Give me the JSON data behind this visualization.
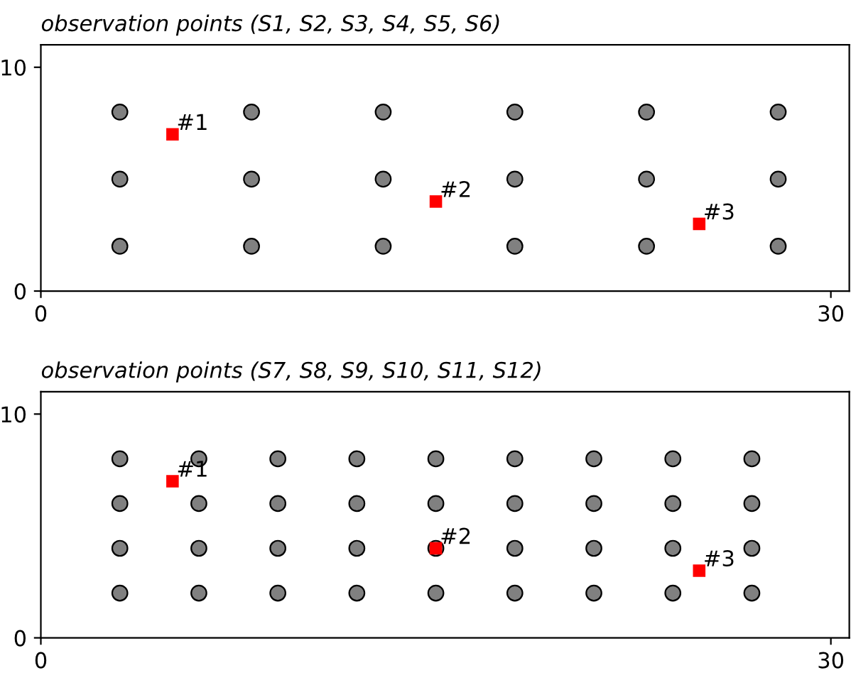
{
  "chart_data": [
    {
      "type": "scatter",
      "title": "observation points (S1, S2, S3, S4, S5, S6)",
      "xlim": [
        0,
        30.7
      ],
      "ylim": [
        0,
        11
      ],
      "xticks": [
        0,
        30
      ],
      "yticks": [
        0,
        10
      ],
      "grid": false,
      "series": [
        {
          "color": "#808080",
          "marker": "circle",
          "x": [
            3,
            8,
            13,
            18,
            23,
            28,
            3,
            8,
            13,
            18,
            23,
            28,
            3,
            8,
            13,
            18,
            23,
            28
          ],
          "values": [
            2,
            2,
            2,
            2,
            2,
            2,
            5,
            5,
            5,
            5,
            5,
            5,
            8,
            8,
            8,
            8,
            8,
            8
          ]
        },
        {
          "color": "#ff0000",
          "marker": "square",
          "x": [
            5,
            15,
            25
          ],
          "values": [
            7,
            4,
            3
          ]
        }
      ],
      "annotations": [
        {
          "text": "#1",
          "x": 5,
          "y": 7
        },
        {
          "text": "#2",
          "x": 15,
          "y": 4
        },
        {
          "text": "#3",
          "x": 25,
          "y": 3
        }
      ]
    },
    {
      "type": "scatter",
      "title": "observation points (S7, S8, S9, S10, S11, S12)",
      "xlim": [
        0,
        30.7
      ],
      "ylim": [
        0,
        11
      ],
      "xticks": [
        0,
        30
      ],
      "yticks": [
        0,
        10
      ],
      "grid": false,
      "series": [
        {
          "color": "#808080",
          "marker": "circle",
          "x": [
            3,
            6,
            9,
            12,
            15,
            18,
            21,
            24,
            27,
            3,
            6,
            9,
            12,
            15,
            18,
            21,
            24,
            27,
            3,
            6,
            9,
            12,
            15,
            18,
            21,
            24,
            27,
            3,
            6,
            9,
            12,
            15,
            18,
            21,
            24,
            27
          ],
          "values": [
            2,
            2,
            2,
            2,
            2,
            2,
            2,
            2,
            2,
            4,
            4,
            4,
            4,
            4,
            4,
            4,
            4,
            4,
            6,
            6,
            6,
            6,
            6,
            6,
            6,
            6,
            6,
            8,
            8,
            8,
            8,
            8,
            8,
            8,
            8,
            8
          ]
        },
        {
          "color": "#ff0000",
          "marker": "square",
          "x": [
            5,
            15,
            25
          ],
          "values": [
            7,
            4,
            3
          ]
        }
      ],
      "annotations": [
        {
          "text": "#1",
          "x": 5,
          "y": 7
        },
        {
          "text": "#2",
          "x": 15,
          "y": 4
        },
        {
          "text": "#3",
          "x": 25,
          "y": 3
        }
      ]
    }
  ]
}
